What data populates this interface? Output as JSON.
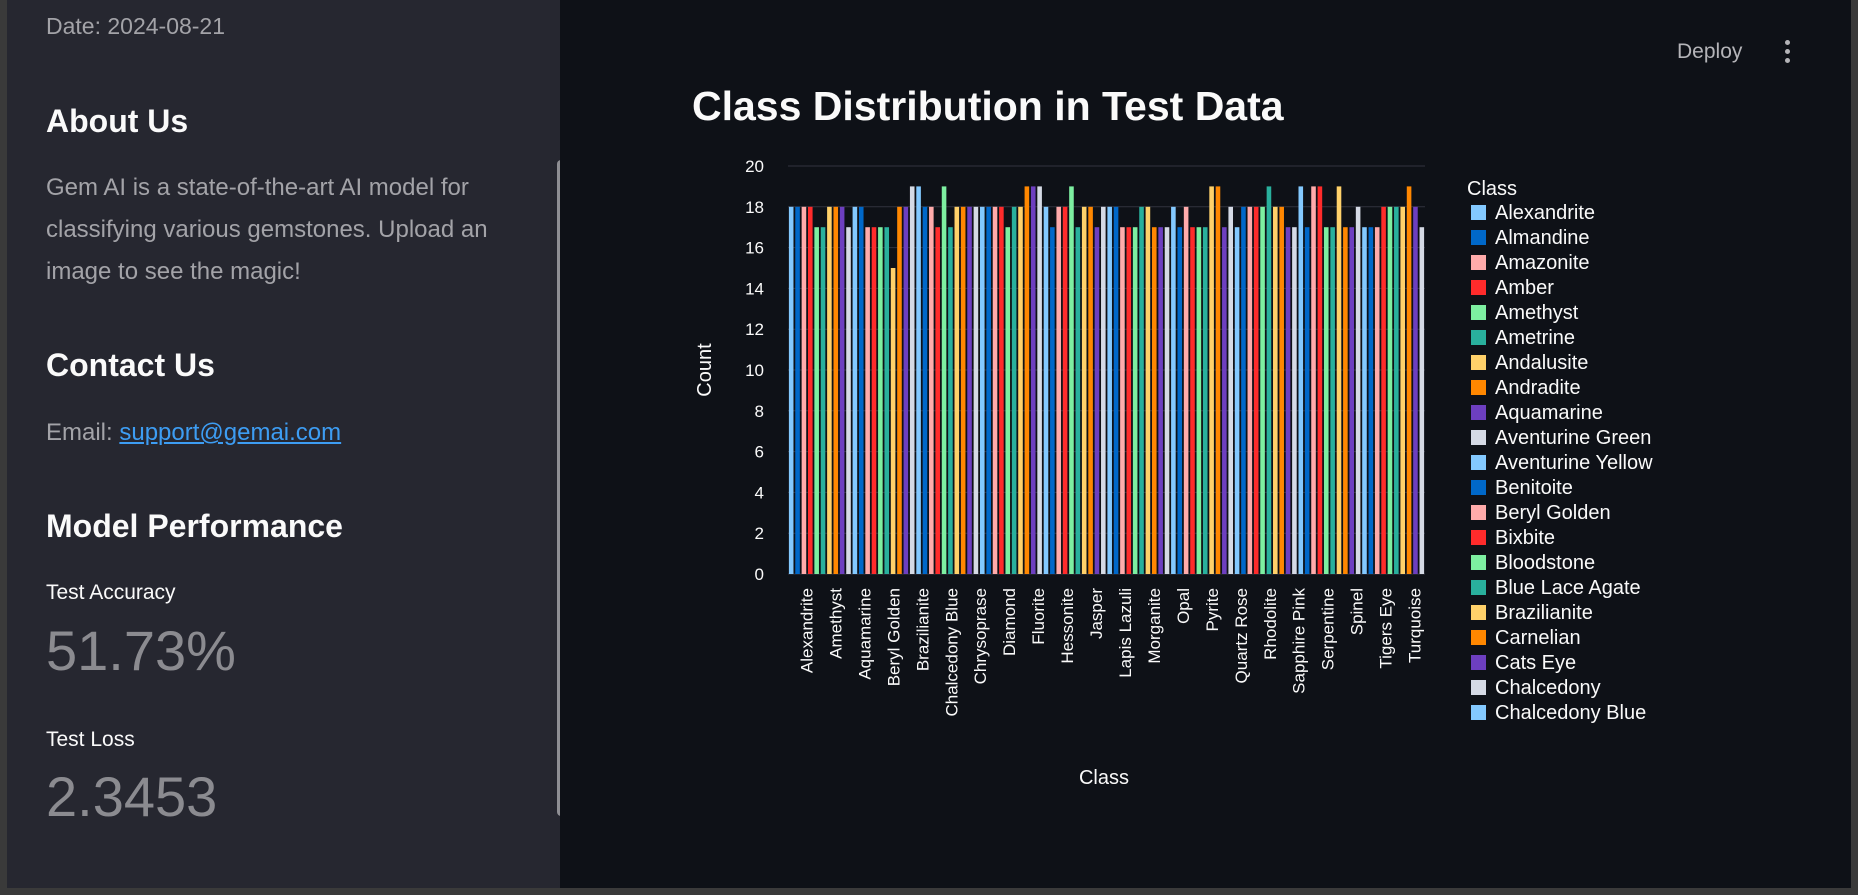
{
  "sidebar": {
    "date": "Date: 2024-08-21",
    "about_title": "About Us",
    "about_text": "Gem AI is a state-of-the-art AI model for classifying various gemstones. Upload an image to see the magic!",
    "contact_title": "Contact Us",
    "email_label": "Email: ",
    "email_link": "support@gemai.com",
    "performance_title": "Model Performance",
    "accuracy_label": "Test Accuracy",
    "accuracy_value": "51.73%",
    "loss_label": "Test Loss",
    "loss_value": "2.3453"
  },
  "header": {
    "deploy_label": "Deploy",
    "menu_icon": "kebab-menu-icon"
  },
  "chart_title": "Class Distribution in Test Data",
  "colors": [
    "#83c9ff",
    "#0068c9",
    "#ffabab",
    "#ff2b2b",
    "#7defa1",
    "#29b09d",
    "#ffd16a",
    "#ff8700",
    "#6d3fc0",
    "#d5dae5"
  ],
  "chart_data": {
    "type": "bar",
    "title": "Class Distribution in Test Data",
    "xlabel": "Class",
    "ylabel": "Count",
    "ylim": [
      0,
      20
    ],
    "y_ticks": [
      0,
      2,
      4,
      6,
      8,
      10,
      12,
      14,
      16,
      18,
      20
    ],
    "legend_title": "Class",
    "legend_position": "right",
    "x_tick_labels": [
      "Alexandrite",
      "Amethyst",
      "Aquamarine",
      "Beryl Golden",
      "Brazilianite",
      "Chalcedony Blue",
      "Chrysoprase",
      "Diamond",
      "Fluorite",
      "Hessonite",
      "Jasper",
      "Lapis Lazuli",
      "Morganite",
      "Opal",
      "Pyrite",
      "Quartz Rose",
      "Rhodolite",
      "Sapphire Pink",
      "Serpentine",
      "Spinel",
      "Tigers Eye",
      "Turquoise"
    ],
    "legend_entries": [
      "Alexandrite",
      "Almandine",
      "Amazonite",
      "Amber",
      "Amethyst",
      "Ametrine",
      "Andalusite",
      "Andradite",
      "Aquamarine",
      "Aventurine Green",
      "Aventurine Yellow",
      "Benitoite",
      "Beryl Golden",
      "Bixbite",
      "Bloodstone",
      "Blue Lace Agate",
      "Brazilianite",
      "Carnelian",
      "Cats Eye",
      "Chalcedony",
      "Chalcedony Blue"
    ],
    "values": [
      18,
      18,
      18,
      18,
      17,
      17,
      18,
      18,
      18,
      17,
      18,
      18,
      17,
      17,
      17,
      17,
      15,
      18,
      18,
      19,
      19,
      18,
      18,
      17,
      19,
      17,
      18,
      18,
      18,
      18,
      18,
      18,
      18,
      18,
      17,
      18,
      18,
      19,
      19,
      19,
      18,
      17,
      18,
      18,
      19,
      17,
      18,
      18,
      17,
      18,
      18,
      18,
      17,
      17,
      17,
      18,
      18,
      17,
      17,
      17,
      18,
      17,
      18,
      17,
      17,
      17,
      19,
      19,
      17,
      18,
      17,
      18,
      18,
      18,
      18,
      19,
      18,
      18,
      17,
      17,
      19,
      17,
      19,
      19,
      17,
      17,
      19,
      17,
      17,
      18,
      17,
      17,
      17,
      18,
      18,
      18,
      18,
      19,
      18,
      17
    ]
  }
}
